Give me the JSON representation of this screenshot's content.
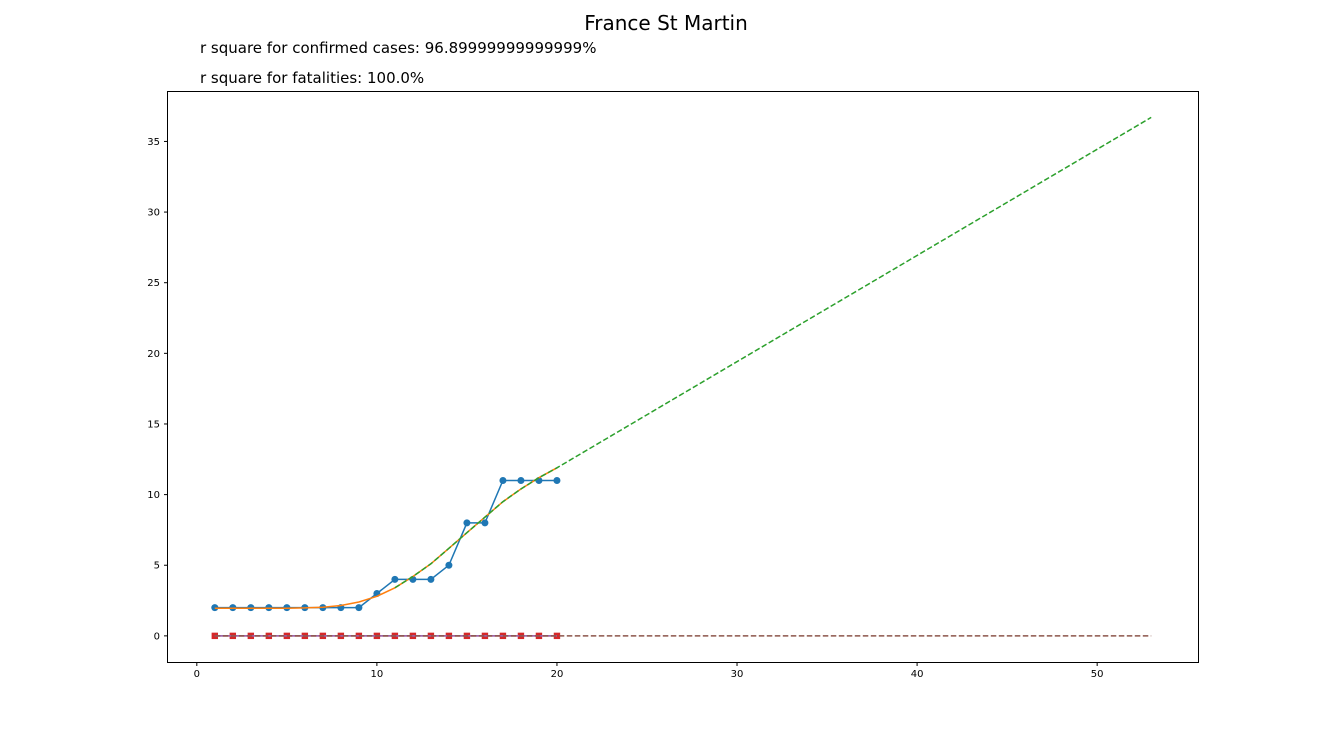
{
  "chart_data": {
    "type": "line",
    "title": "France St Martin",
    "annotations": [
      "r square for confirmed cases: 96.89999999999999%",
      "r square for fatalities: 100.0%"
    ],
    "xlabel": "",
    "ylabel": "",
    "xlim": [
      -1.6,
      55.6
    ],
    "ylim": [
      -1.85,
      38.5
    ],
    "xticks": [
      0,
      10,
      20,
      30,
      40,
      50
    ],
    "yticks": [
      0,
      5,
      10,
      15,
      20,
      25,
      30,
      35
    ],
    "grid": false,
    "legend": "none",
    "series": [
      {
        "kind": "observed-confirmed",
        "color": "#1f77b4",
        "marker": "circle",
        "dash": false,
        "x": [
          1,
          2,
          3,
          4,
          5,
          6,
          7,
          8,
          9,
          10,
          11,
          12,
          13,
          14,
          15,
          16,
          17,
          18,
          19,
          20
        ],
        "y": [
          2,
          2,
          2,
          2,
          2,
          2,
          2,
          2,
          2,
          3,
          4,
          4,
          4,
          5,
          8,
          8,
          11,
          11,
          11,
          11
        ]
      },
      {
        "kind": "fit-confirmed",
        "color": "#ff7f0e",
        "marker": "none",
        "dash": false,
        "x": [
          1,
          2,
          3,
          4,
          5,
          6,
          7,
          8,
          9,
          10,
          11,
          12,
          13,
          14,
          15,
          16,
          17,
          18,
          19,
          20
        ],
        "y": [
          1.95,
          1.95,
          1.95,
          1.95,
          1.96,
          1.98,
          2.03,
          2.15,
          2.4,
          2.8,
          3.4,
          4.2,
          5.1,
          6.2,
          7.3,
          8.4,
          9.5,
          10.4,
          11.2,
          11.9
        ]
      },
      {
        "kind": "projection-confirmed",
        "color": "#2ca02c",
        "marker": "none",
        "dash": true,
        "x": [
          11,
          12,
          13,
          14,
          15,
          16,
          17,
          18,
          19,
          20,
          53
        ],
        "y": [
          3.4,
          4.2,
          5.1,
          6.2,
          7.3,
          8.4,
          9.5,
          10.4,
          11.2,
          11.9,
          36.7
        ]
      },
      {
        "kind": "observed-fatalities",
        "color": "#d62728",
        "marker": "square",
        "dash": false,
        "x": [
          1,
          2,
          3,
          4,
          5,
          6,
          7,
          8,
          9,
          10,
          11,
          12,
          13,
          14,
          15,
          16,
          17,
          18,
          19,
          20
        ],
        "y": [
          0,
          0,
          0,
          0,
          0,
          0,
          0,
          0,
          0,
          0,
          0,
          0,
          0,
          0,
          0,
          0,
          0,
          0,
          0,
          0
        ]
      },
      {
        "kind": "fit-fatalities",
        "color": "#9467bd",
        "marker": "none",
        "dash": false,
        "x": [
          1,
          20
        ],
        "y": [
          0,
          0
        ]
      },
      {
        "kind": "projection-fatalities",
        "color": "#8c564b",
        "marker": "none",
        "dash": true,
        "x": [
          1,
          53
        ],
        "y": [
          0,
          0
        ]
      }
    ]
  }
}
